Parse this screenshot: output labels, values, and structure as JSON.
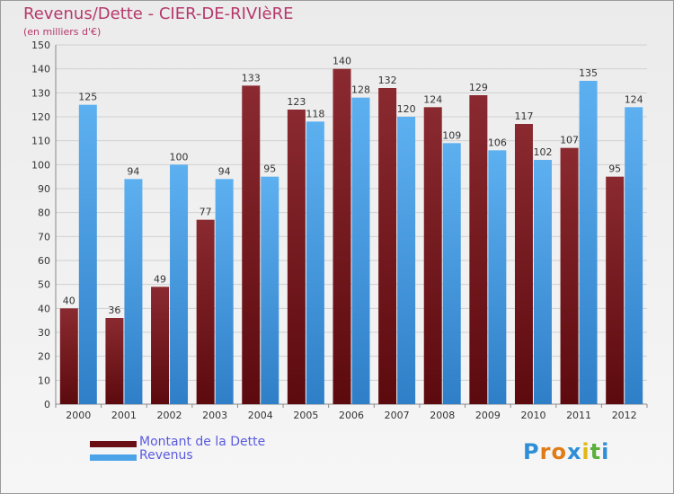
{
  "header": {
    "title": "Revenus/Dette - CIER-DE-RIVIèRE",
    "subtitle": "(en milliers d'€)"
  },
  "chart_data": {
    "type": "bar",
    "title": "Revenus/Dette - CIER-DE-RIVIèRE",
    "subtitle": "(en milliers d'€)",
    "categories": [
      "2000",
      "2001",
      "2002",
      "2003",
      "2004",
      "2005",
      "2006",
      "2007",
      "2008",
      "2009",
      "2010",
      "2011",
      "2012"
    ],
    "series": [
      {
        "name": "Montant de la Dette",
        "color": "#7a1f24",
        "values": [
          40,
          36,
          49,
          77,
          133,
          123,
          140,
          132,
          124,
          129,
          117,
          107,
          95
        ]
      },
      {
        "name": "Revenus",
        "color": "#4da3e8",
        "values": [
          125,
          94,
          100,
          94,
          95,
          118,
          128,
          120,
          109,
          106,
          102,
          135,
          124
        ]
      }
    ],
    "ylim": [
      0,
      150
    ],
    "yticks": [
      0,
      10,
      20,
      30,
      40,
      50,
      60,
      70,
      80,
      90,
      100,
      110,
      120,
      130,
      140,
      150
    ],
    "grid": true,
    "legend_position": "bottom-left"
  },
  "legend": {
    "items": [
      {
        "label": "Montant de la Dette",
        "color": "#7a1f24"
      },
      {
        "label": "Revenus",
        "color": "#4da3e8"
      }
    ]
  },
  "logo": {
    "letters": [
      "P",
      "r",
      "o",
      "x",
      "i",
      "t",
      "i"
    ],
    "colors": [
      "#2f8fd6",
      "#e07b16",
      "#e07b16",
      "#2f8fd6",
      "#e0b916",
      "#5cb03c",
      "#2f8fd6"
    ]
  }
}
